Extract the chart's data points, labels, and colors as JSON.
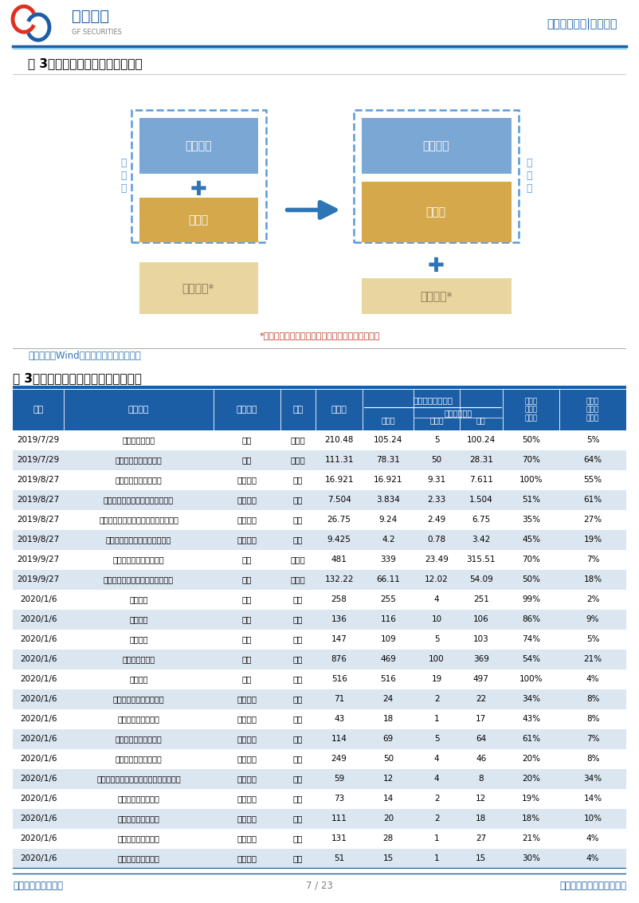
{
  "header_title": "行业专题研究|建筑装饰",
  "fig3_title": "图 3：专项债可以作为项目资本金",
  "fig3_note": "*其他融资主要包括金融机构贷款、银行借款等形式",
  "data_source": "数据来源：Wind，广发证券发展研究中心",
  "table_title": "表 3：专项债作为项目资本金项目统计",
  "table_rows": [
    [
      "2019/7/29",
      "呼和浩特新机场",
      "机场",
      "内蒙古",
      "210.48",
      "105.24",
      "5",
      "100.24",
      "50%",
      "5%"
    ],
    [
      "2019/7/29",
      "集宁至大同至原平铁路",
      "铁路",
      "内蒙古",
      "111.31",
      "78.31",
      "50",
      "28.31",
      "70%",
      "64%"
    ],
    [
      "2019/8/27",
      "鲁南高铁曲阜片区建设",
      "高铁配套",
      "山东",
      "16.921",
      "16.921",
      "9.31",
      "7.611",
      "100%",
      "55%"
    ],
    [
      "2019/8/27",
      "鲁南高铁济宁市兖州片区建设项目",
      "高铁配套",
      "山东",
      "7.504",
      "3.834",
      "2.33",
      "1.504",
      "51%",
      "61%"
    ],
    [
      "2019/8/27",
      "鲁南高铁济宁站片区综合开发建设项目",
      "高铁配套",
      "山东",
      "26.75",
      "9.24",
      "2.49",
      "6.75",
      "35%",
      "27%"
    ],
    [
      "2019/8/27",
      "鲁南高铁嘉祥投北片区建设项目",
      "高铁配套",
      "山东",
      "9.425",
      "4.2",
      "0.78",
      "3.42",
      "45%",
      "19%"
    ],
    [
      "2019/9/27",
      "包头至惠东南段铁路项目",
      "铁路",
      "内蒙古",
      "481",
      "339",
      "23.49",
      "315.51",
      "70%",
      "7%"
    ],
    [
      "2019/9/27",
      "改建集宁至通辽线电气化改造项目",
      "铁路",
      "内蒙古",
      "132.22",
      "66.11",
      "12.02",
      "54.09",
      "50%",
      "18%"
    ],
    [
      "2020/1/6",
      "大瑞铁路",
      "铁路",
      "云南",
      "258",
      "255",
      "4",
      "251",
      "99%",
      "2%"
    ],
    [
      "2020/1/6",
      "弥蒙铁路",
      "铁路",
      "云南",
      "136",
      "116",
      "10",
      "106",
      "86%",
      "9%"
    ],
    [
      "2020/1/6",
      "大临铁路",
      "铁路",
      "云南",
      "147",
      "109",
      "5",
      "103",
      "74%",
      "5%"
    ],
    [
      "2020/1/6",
      "渝昆铁路云南段",
      "铁路",
      "云南",
      "876",
      "469",
      "100",
      "369",
      "54%",
      "21%"
    ],
    [
      "2020/1/6",
      "玉磨铁路",
      "铁路",
      "云南",
      "516",
      "516",
      "19",
      "497",
      "100%",
      "4%"
    ],
    [
      "2020/1/6",
      "腾冲至猴桥高速公路项目",
      "收费公路",
      "云南",
      "71",
      "24",
      "2",
      "22",
      "34%",
      "8%"
    ],
    [
      "2020/1/6",
      "文山至马关高速公路",
      "收费公路",
      "云南",
      "43",
      "18",
      "1",
      "17",
      "43%",
      "8%"
    ],
    [
      "2020/1/6",
      "文山至麻栗坡高速公路",
      "收费公路",
      "云南",
      "114",
      "69",
      "5",
      "64",
      "61%",
      "7%"
    ],
    [
      "2020/1/6",
      "临翔至清水河高速公路",
      "收费公路",
      "云南",
      "249",
      "50",
      "4",
      "46",
      "20%",
      "8%"
    ],
    [
      "2020/1/6",
      "镇康（南伞）至耿马（清水河）高速公路",
      "收费公路",
      "云南",
      "59",
      "12",
      "4",
      "8",
      "20%",
      "34%"
    ],
    [
      "2020/1/6",
      "临翔至双江高速公路",
      "收费公路",
      "云南",
      "73",
      "14",
      "2",
      "12",
      "19%",
      "14%"
    ],
    [
      "2020/1/6",
      "云县至临沧高速公路",
      "收费公路",
      "云南",
      "111",
      "20",
      "2",
      "18",
      "18%",
      "10%"
    ],
    [
      "2020/1/6",
      "南涧至景东高速公路",
      "收费公路",
      "云南",
      "131",
      "28",
      "1",
      "27",
      "21%",
      "4%"
    ],
    [
      "2020/1/6",
      "鹤庆至关城高速公路",
      "收费公路",
      "云南",
      "51",
      "15",
      "1",
      "15",
      "30%",
      "4%"
    ]
  ],
  "footer_left": "识别风险，发现价值",
  "footer_right": "请务必阅读末页的免责声明",
  "footer_page": "7 / 23",
  "header_blue": "#1B5EA6",
  "table_header_bg": "#1B5EA6",
  "table_header_fg": "#FFFFFF",
  "row_alt_bg": "#DCE6F1",
  "color_light_blue_box": "#7BA7D4",
  "color_gold_box": "#D4A84B",
  "color_beige_box": "#E8D5A0",
  "color_arrow": "#2E75B6",
  "color_dashed_border": "#5B9BD5",
  "color_note_red": "#C0392B",
  "color_source_blue": "#2E75B6"
}
